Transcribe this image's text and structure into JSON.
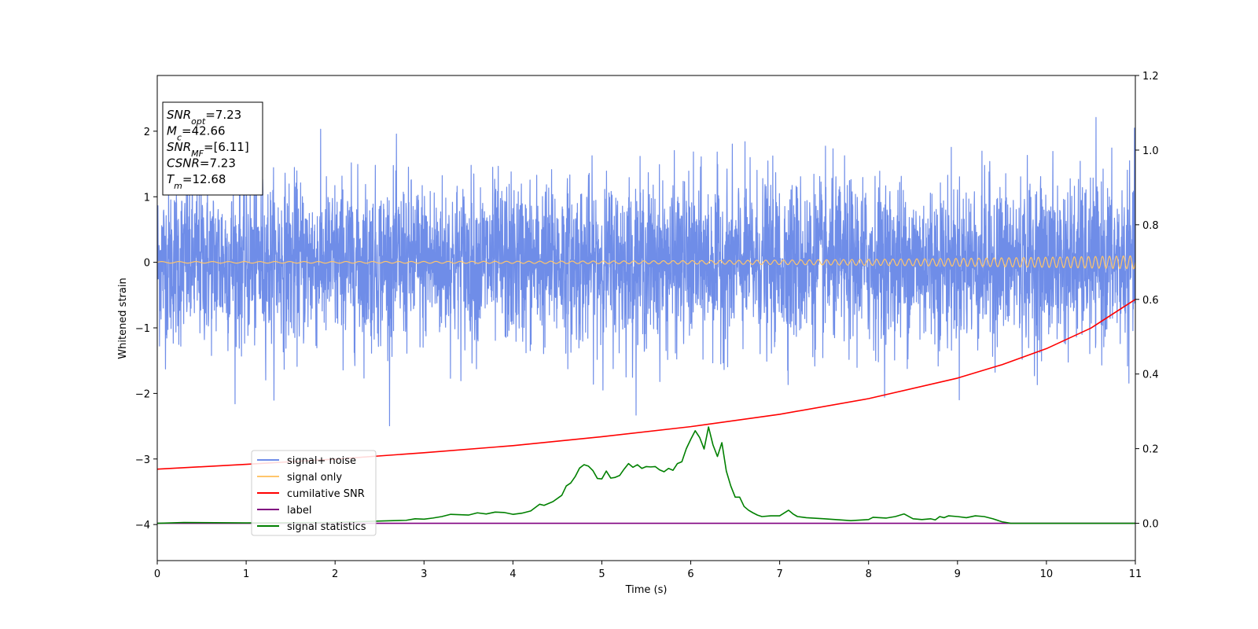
{
  "chart_data": {
    "type": "line",
    "xlabel": "Time (s)",
    "ylabel": "Whitened strain",
    "xlim": [
      0,
      11
    ],
    "ylim_left": [
      -4.55,
      2.85
    ],
    "ylim_right": [
      -0.1,
      1.2
    ],
    "x_ticks": [
      "0",
      "1",
      "2",
      "3",
      "4",
      "5",
      "6",
      "7",
      "8",
      "9",
      "10",
      "11"
    ],
    "y_ticks_left": [
      "−4",
      "−3",
      "−2",
      "−1",
      "0",
      "1",
      "2"
    ],
    "y_ticks_right": [
      "0.0",
      "0.2",
      "0.4",
      "0.6",
      "0.8",
      "1.0",
      "1.2"
    ],
    "grid": false,
    "legend_position": "lower-left",
    "legend": [
      {
        "label": "signal+ noise",
        "color": "#6f8de8"
      },
      {
        "label": "signal only",
        "color": "#ffc56b"
      },
      {
        "label": "cumilative SNR",
        "color": "#ff0000"
      },
      {
        "label": "label",
        "color": "#800080"
      },
      {
        "label": "signal statistics",
        "color": "#008000"
      }
    ],
    "stats_box": [
      {
        "base": "SNR",
        "sub": "opt",
        "value": "=7.23"
      },
      {
        "base": "M",
        "sub": "c",
        "value": "=42.66"
      },
      {
        "base": "SNR",
        "sub": "MF",
        "value": "=[6.11]"
      },
      {
        "base": "CSNR",
        "sub": "",
        "value": "=7.23"
      },
      {
        "base": "T",
        "sub": "m",
        "value": "=12.68"
      }
    ],
    "series": [
      {
        "name": "signal+ noise",
        "axis": "left",
        "color": "#6f8de8",
        "std": 0.62,
        "max": 2.42,
        "min": -2.62
      },
      {
        "name": "signal only",
        "axis": "left",
        "color": "#ffc56b",
        "amplitude_start": 0.012,
        "amplitude_end": 0.1,
        "freq_start_hz": 5,
        "freq_end_hz": 13
      },
      {
        "name": "cumilative SNR",
        "axis": "right",
        "color": "#ff0000",
        "x": [
          0,
          1,
          2,
          3,
          4,
          5,
          6,
          7,
          8,
          9,
          9.5,
          10,
          10.5,
          11
        ],
        "y": [
          0.145,
          0.158,
          0.172,
          0.189,
          0.208,
          0.232,
          0.259,
          0.292,
          0.334,
          0.389,
          0.425,
          0.468,
          0.523,
          0.6
        ]
      },
      {
        "name": "label",
        "axis": "right",
        "color": "#800080",
        "x": [
          0,
          11
        ],
        "y": [
          0.0,
          0.0
        ]
      },
      {
        "name": "signal statistics",
        "axis": "right",
        "color": "#008000",
        "x": [
          0,
          0.3,
          1.0,
          2.0,
          2.5,
          2.8,
          2.9,
          3.0,
          3.1,
          3.2,
          3.3,
          3.5,
          3.6,
          3.7,
          3.8,
          3.9,
          4.0,
          4.1,
          4.2,
          4.3,
          4.35,
          4.45,
          4.55,
          4.6,
          4.65,
          4.7,
          4.75,
          4.8,
          4.85,
          4.9,
          4.95,
          5.0,
          5.05,
          5.1,
          5.15,
          5.2,
          5.25,
          5.3,
          5.35,
          5.4,
          5.45,
          5.5,
          5.55,
          5.6,
          5.65,
          5.7,
          5.75,
          5.8,
          5.85,
          5.9,
          5.95,
          6.0,
          6.05,
          6.1,
          6.15,
          6.2,
          6.25,
          6.3,
          6.35,
          6.4,
          6.45,
          6.5,
          6.55,
          6.6,
          6.65,
          6.7,
          6.75,
          6.8,
          6.9,
          7.0,
          7.1,
          7.15,
          7.2,
          7.3,
          7.5,
          7.8,
          8.0,
          8.05,
          8.2,
          8.3,
          8.4,
          8.5,
          8.6,
          8.7,
          8.75,
          8.8,
          8.85,
          8.9,
          9.0,
          9.1,
          9.2,
          9.3,
          9.4,
          9.5,
          9.6,
          9.8,
          10.0,
          11.0
        ],
        "y": [
          0.0,
          0.002,
          0.001,
          0.002,
          0.006,
          0.008,
          0.012,
          0.011,
          0.014,
          0.018,
          0.024,
          0.022,
          0.028,
          0.025,
          0.03,
          0.029,
          0.024,
          0.027,
          0.033,
          0.051,
          0.048,
          0.058,
          0.075,
          0.1,
          0.108,
          0.125,
          0.148,
          0.157,
          0.153,
          0.141,
          0.12,
          0.119,
          0.14,
          0.121,
          0.123,
          0.128,
          0.145,
          0.16,
          0.15,
          0.157,
          0.147,
          0.152,
          0.151,
          0.152,
          0.143,
          0.138,
          0.147,
          0.142,
          0.16,
          0.165,
          0.2,
          0.225,
          0.248,
          0.23,
          0.199,
          0.258,
          0.21,
          0.179,
          0.216,
          0.14,
          0.1,
          0.07,
          0.07,
          0.045,
          0.035,
          0.028,
          0.022,
          0.018,
          0.02,
          0.02,
          0.035,
          0.025,
          0.018,
          0.015,
          0.012,
          0.007,
          0.01,
          0.016,
          0.014,
          0.018,
          0.025,
          0.012,
          0.01,
          0.012,
          0.009,
          0.018,
          0.015,
          0.02,
          0.018,
          0.015,
          0.02,
          0.018,
          0.012,
          0.004,
          0.0,
          0.0,
          0.0,
          0.0
        ]
      }
    ]
  }
}
